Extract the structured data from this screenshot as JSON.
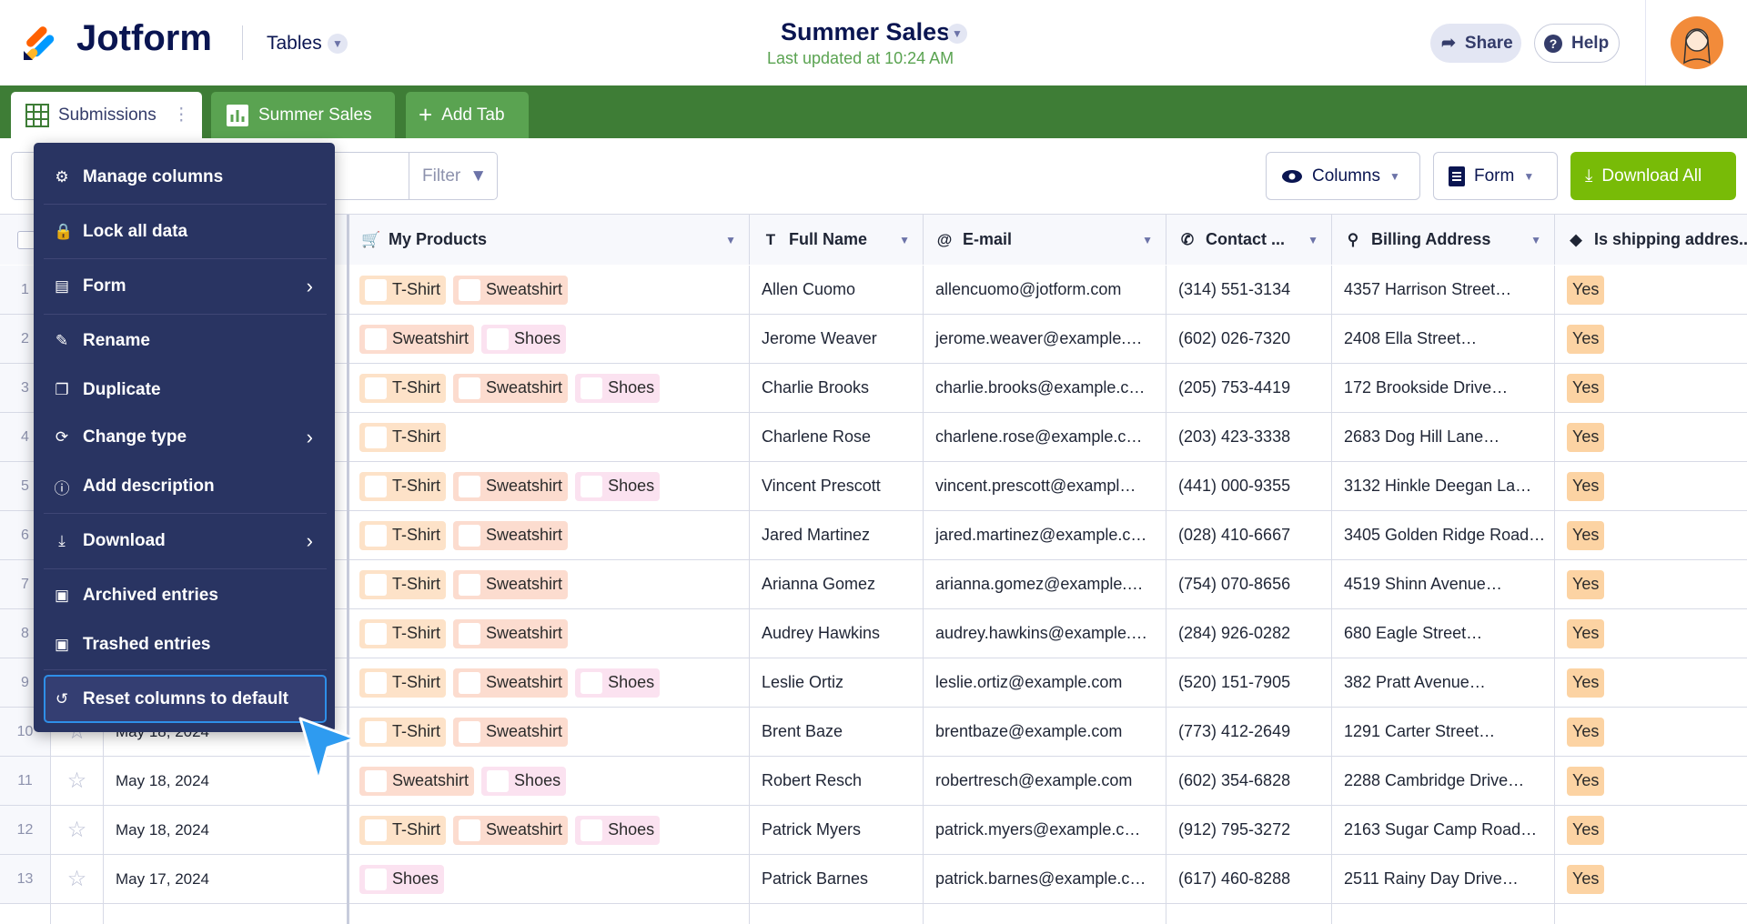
{
  "header": {
    "logo": "Jotform",
    "app": "Tables",
    "title": "Summer Sales",
    "updated": "Last updated at 10:24 AM",
    "share": "Share",
    "help": "Help"
  },
  "tabs": [
    "Submissions",
    "Summer Sales",
    "Add Tab"
  ],
  "toolbar": {
    "filter": "Filter",
    "columns": "Columns",
    "form": "Form",
    "download": "Download All"
  },
  "menu": [
    "Manage columns",
    "Lock all data",
    "Form",
    "Rename",
    "Duplicate",
    "Change type",
    "Add description",
    "Download",
    "Archived entries",
    "Trashed entries",
    "Reset columns to default"
  ],
  "table": {
    "columns": [
      "My Products",
      "Full Name",
      "E-mail",
      "Contact ...",
      "Billing Address",
      "Is shipping addres..."
    ],
    "product_colors": {
      "T-Shirt": "#fde2c8",
      "Sweatshirt": "#fcdccf",
      "Shoes": "#fbe2f0"
    },
    "rows": [
      {
        "n": 1,
        "products": [
          "T-Shirt",
          "Sweatshirt"
        ],
        "name": "Allen Cuomo",
        "email": "allencuomo@jotform.com",
        "phone": "(314) 551-3134",
        "address": "4357 Harrison Street…",
        "shipping": "Yes"
      },
      {
        "n": 2,
        "products": [
          "Sweatshirt",
          "Shoes"
        ],
        "name": "Jerome Weaver",
        "email": "jerome.weaver@example.…",
        "phone": "(602) 026-7320",
        "address": "2408 Ella Street…",
        "shipping": "Yes"
      },
      {
        "n": 3,
        "products": [
          "T-Shirt",
          "Sweatshirt",
          "Shoes"
        ],
        "name": "Charlie Brooks",
        "email": "charlie.brooks@example.c…",
        "phone": "(205) 753-4419",
        "address": "172 Brookside Drive…",
        "shipping": "Yes"
      },
      {
        "n": 4,
        "products": [
          "T-Shirt"
        ],
        "name": "Charlene Rose",
        "email": "charlene.rose@example.c…",
        "phone": "(203) 423-3338",
        "address": "2683 Dog Hill Lane…",
        "shipping": "Yes"
      },
      {
        "n": 5,
        "products": [
          "T-Shirt",
          "Sweatshirt",
          "Shoes"
        ],
        "name": "Vincent Prescott",
        "email": "vincent.prescott@exampl…",
        "phone": "(441) 000-9355",
        "address": "3132 Hinkle Deegan La…",
        "shipping": "Yes"
      },
      {
        "n": 6,
        "products": [
          "T-Shirt",
          "Sweatshirt"
        ],
        "name": "Jared Martinez",
        "email": "jared.martinez@example.c…",
        "phone": "(028) 410-6667",
        "address": "3405 Golden Ridge Road…",
        "shipping": "Yes"
      },
      {
        "n": 7,
        "products": [
          "T-Shirt",
          "Sweatshirt"
        ],
        "name": "Arianna Gomez",
        "email": "arianna.gomez@example.…",
        "phone": "(754) 070-8656",
        "address": "4519 Shinn Avenue…",
        "shipping": "Yes"
      },
      {
        "n": 8,
        "products": [
          "T-Shirt",
          "Sweatshirt"
        ],
        "name": "Audrey Hawkins",
        "email": "audrey.hawkins@example.…",
        "phone": "(284) 926-0282",
        "address": "680 Eagle Street…",
        "shipping": "Yes"
      },
      {
        "n": 9,
        "products": [
          "T-Shirt",
          "Sweatshirt",
          "Shoes"
        ],
        "name": "Leslie Ortiz",
        "email": "leslie.ortiz@example.com",
        "phone": "(520) 151-7905",
        "address": "382 Pratt Avenue…",
        "shipping": "Yes"
      },
      {
        "n": 10,
        "date": "May 18, 2024",
        "products": [
          "T-Shirt",
          "Sweatshirt"
        ],
        "name": "Brent Baze",
        "email": "brentbaze@example.com",
        "phone": "(773) 412-2649",
        "address": "1291 Carter Street…",
        "shipping": "Yes"
      },
      {
        "n": 11,
        "date": "May 18, 2024",
        "products": [
          "Sweatshirt",
          "Shoes"
        ],
        "name": "Robert Resch",
        "email": "robertresch@example.com",
        "phone": "(602) 354-6828",
        "address": "2288 Cambridge Drive…",
        "shipping": "Yes"
      },
      {
        "n": 12,
        "date": "May 18, 2024",
        "products": [
          "T-Shirt",
          "Sweatshirt",
          "Shoes"
        ],
        "name": "Patrick Myers",
        "email": "patrick.myers@example.c…",
        "phone": "(912) 795-3272",
        "address": "2163 Sugar Camp Road…",
        "shipping": "Yes"
      },
      {
        "n": 13,
        "date": "May 17, 2024",
        "products": [
          "Shoes"
        ],
        "name": "Patrick Barnes",
        "email": "patrick.barnes@example.c…",
        "phone": "(617) 460-8288",
        "address": "2511 Rainy Day Drive…",
        "shipping": "Yes"
      }
    ]
  }
}
